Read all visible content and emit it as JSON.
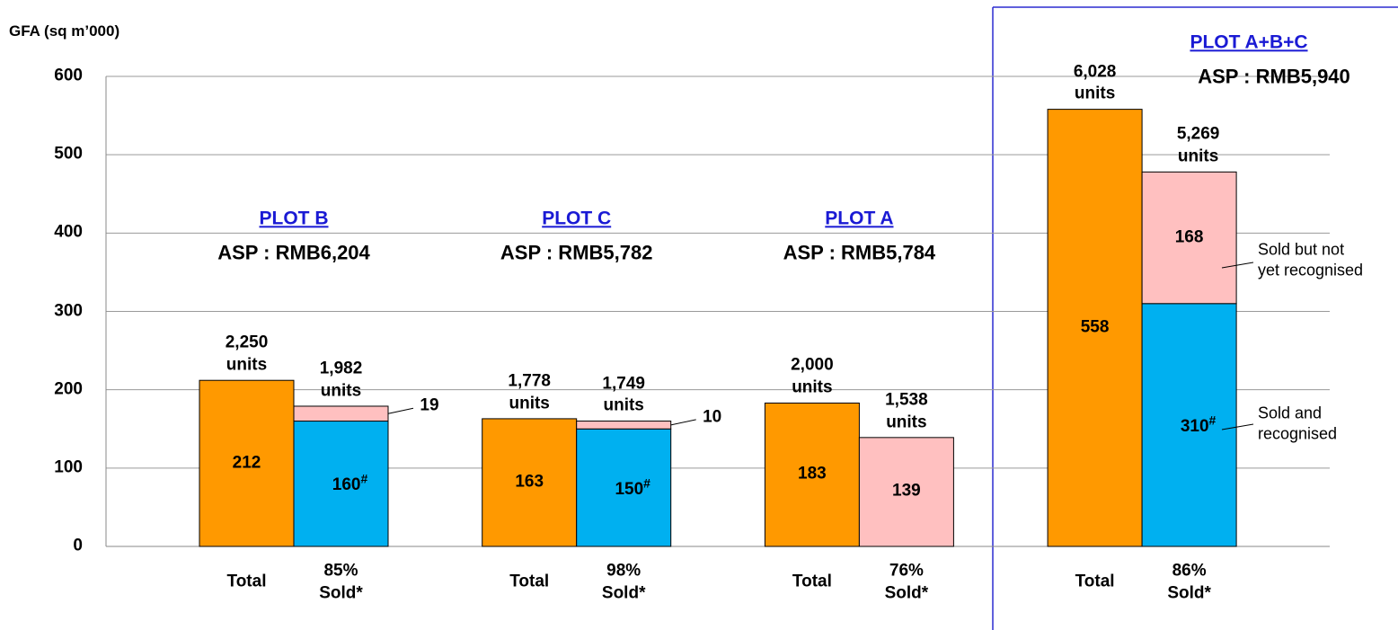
{
  "chart_data": {
    "type": "stacked_bar",
    "y_label": "GFA (sq m’000)",
    "ylim": [
      0,
      600
    ],
    "yticks": [
      0,
      100,
      200,
      300,
      400,
      500,
      600
    ],
    "grid": true,
    "categories": [
      "Total",
      "85%\nSold*",
      "Total",
      "98%\nSold*",
      "Total",
      "76%\nSold*",
      "Total",
      "86%\nSold*"
    ],
    "groups": [
      {
        "name": "PLOT B",
        "asp": "ASP : RMB6,204"
      },
      {
        "name": "PLOT C",
        "asp": "ASP : RMB5,782"
      },
      {
        "name": "PLOT A",
        "asp": "ASP : RMB5,784"
      },
      {
        "name": "PLOT A+B+C",
        "asp": "ASP : RMB5,940"
      }
    ],
    "bar_labels": [
      "2,250\nunits",
      "1,982\nunits",
      "1,778\nunits",
      "1,749\nunits",
      "2,000\nunits",
      "1,538\nunits",
      "6,028\nunits",
      "5,269\nunits"
    ],
    "series": [
      {
        "color": "#FF9900",
        "values": [
          212,
          null,
          163,
          null,
          183,
          null,
          558,
          null
        ]
      },
      {
        "name": "Sold and\nrecognised",
        "color": "#00B0F0",
        "note": "#",
        "values": [
          null,
          160,
          null,
          150,
          null,
          null,
          null,
          310
        ]
      },
      {
        "name": "Sold but not\nyet recognised",
        "color": "#FFC0C0",
        "values": [
          null,
          19,
          null,
          10,
          null,
          139,
          null,
          168
        ]
      }
    ]
  }
}
